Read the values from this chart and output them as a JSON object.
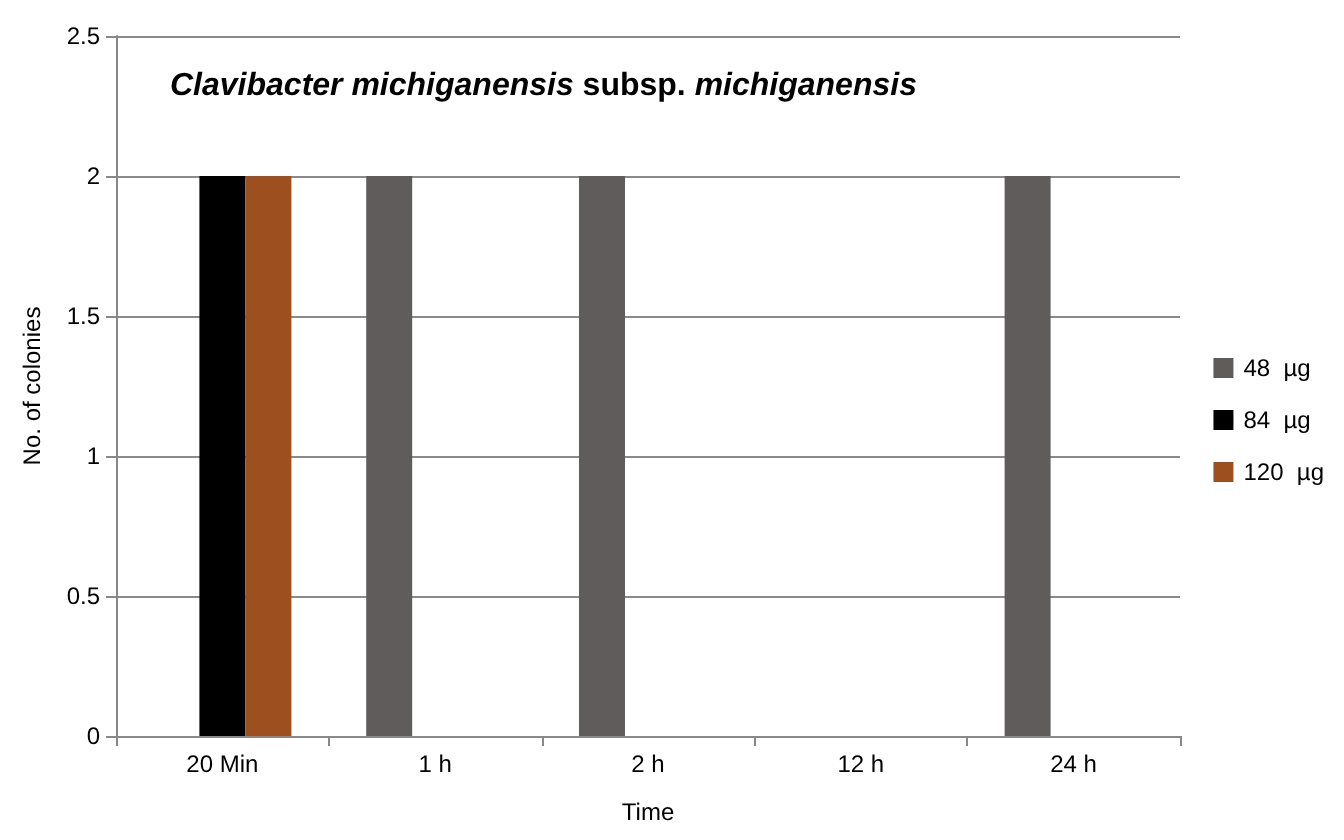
{
  "chart_data": {
    "type": "bar",
    "title": "Clavibacter michiganensis subsp. michiganensis",
    "xlabel": "Time",
    "ylabel": "No. of colonies",
    "categories": [
      "20 Min",
      "1 h",
      "2 h",
      "12 h",
      "24 h"
    ],
    "series": [
      {
        "name": "48  µg",
        "color": "#5f5c5b",
        "values": [
          0,
          2,
          2,
          0,
          2
        ]
      },
      {
        "name": "84  µg",
        "color": "#000000",
        "values": [
          2,
          0,
          0,
          0,
          0
        ]
      },
      {
        "name": "120  µg",
        "color": "#9e4f1f",
        "values": [
          2,
          0,
          0,
          0,
          0
        ]
      }
    ],
    "ylim": [
      0,
      2.5
    ],
    "yticks": [
      0,
      0.5,
      1,
      1.5,
      2,
      2.5
    ],
    "grid": "y",
    "legend": "right"
  }
}
